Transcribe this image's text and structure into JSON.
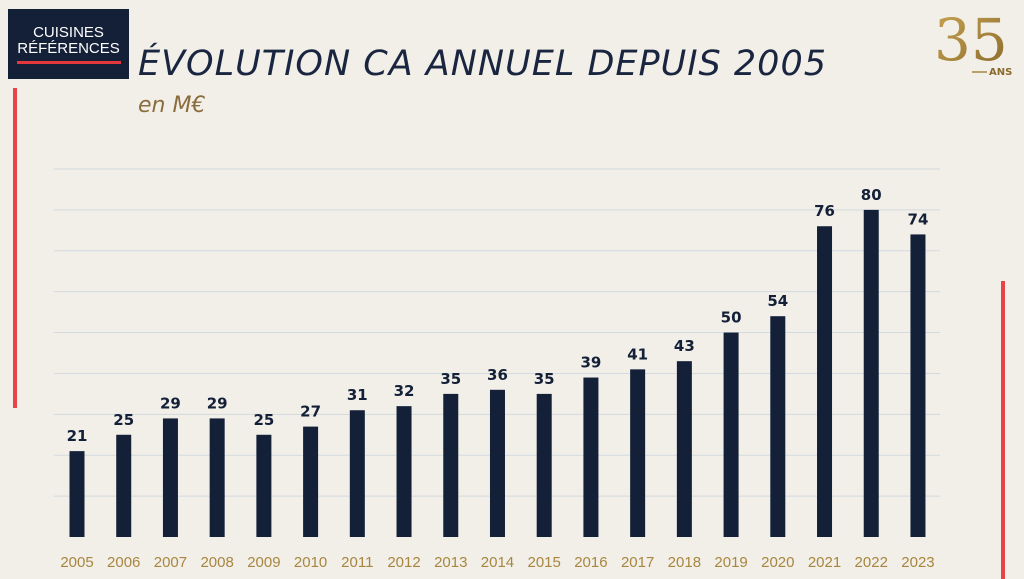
{
  "logo": {
    "line1": "CUISINES",
    "line2": "RÉFÉRENCES"
  },
  "anniversary": {
    "number": "35",
    "suffix": "ANS"
  },
  "colors": {
    "bar": "#132038",
    "gold": "#a8863f",
    "accent": "#e84346",
    "grid": "#d3dae0"
  },
  "chart_data": {
    "type": "bar",
    "title": "ÉVOLUTION CA ANNUEL DEPUIS 2005",
    "subtitle": "en M€",
    "xlabel": "",
    "ylabel": "",
    "categories": [
      "2005",
      "2006",
      "2007",
      "2008",
      "2009",
      "2010",
      "2011",
      "2012",
      "2013",
      "2014",
      "2015",
      "2016",
      "2017",
      "2018",
      "2019",
      "2020",
      "2021",
      "2022",
      "2023"
    ],
    "values": [
      21,
      25,
      29,
      29,
      25,
      27,
      31,
      32,
      35,
      36,
      35,
      39,
      41,
      43,
      50,
      54,
      76,
      80,
      74
    ],
    "ylim": [
      0,
      90
    ],
    "grid": true,
    "data_labels": true
  }
}
